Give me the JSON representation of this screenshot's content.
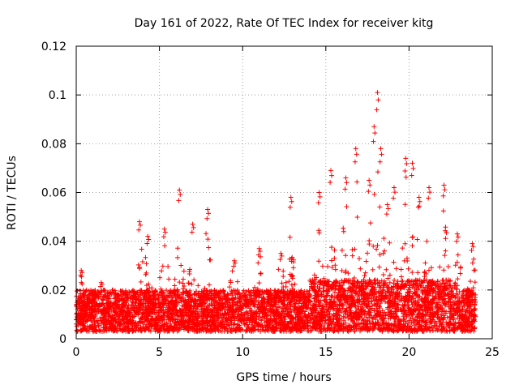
{
  "chart_data": {
    "type": "scatter",
    "title": "Day 161 of 2022, Rate Of TEC Index for receiver kitg",
    "xlabel": "GPS time / hours",
    "ylabel": "ROTI / TECUs",
    "xlim": [
      0,
      25
    ],
    "ylim": [
      0,
      0.12
    ],
    "x_ticks": [
      0,
      5,
      10,
      15,
      20,
      25
    ],
    "x_tick_labels": [
      "0",
      "5",
      "10",
      "15",
      "20",
      "25"
    ],
    "y_ticks": [
      0,
      0.02,
      0.04,
      0.06,
      0.08,
      0.1,
      0.12
    ],
    "y_tick_labels": [
      "0",
      "0.02",
      "0.04",
      "0.06",
      "0.08",
      "0.1",
      "0.12"
    ],
    "grid": true,
    "marker": "+",
    "color": "#ff0000",
    "series": [
      {
        "name": "ROTI",
        "x_range_hours": [
          0,
          24
        ],
        "typical_range": [
          0.003,
          0.02
        ],
        "peaks": [
          {
            "x": 0.3,
            "y": 0.028
          },
          {
            "x": 1.5,
            "y": 0.023
          },
          {
            "x": 3.8,
            "y": 0.048
          },
          {
            "x": 4.3,
            "y": 0.042
          },
          {
            "x": 5.3,
            "y": 0.045
          },
          {
            "x": 6.2,
            "y": 0.061
          },
          {
            "x": 7.0,
            "y": 0.047
          },
          {
            "x": 7.9,
            "y": 0.053
          },
          {
            "x": 9.5,
            "y": 0.032
          },
          {
            "x": 11.0,
            "y": 0.037
          },
          {
            "x": 12.3,
            "y": 0.035
          },
          {
            "x": 12.9,
            "y": 0.058
          },
          {
            "x": 14.6,
            "y": 0.06
          },
          {
            "x": 15.3,
            "y": 0.069
          },
          {
            "x": 16.2,
            "y": 0.066
          },
          {
            "x": 16.8,
            "y": 0.078
          },
          {
            "x": 17.6,
            "y": 0.065
          },
          {
            "x": 17.9,
            "y": 0.087
          },
          {
            "x": 18.1,
            "y": 0.101
          },
          {
            "x": 18.3,
            "y": 0.078
          },
          {
            "x": 18.7,
            "y": 0.055
          },
          {
            "x": 19.1,
            "y": 0.062
          },
          {
            "x": 19.8,
            "y": 0.074
          },
          {
            "x": 20.2,
            "y": 0.072
          },
          {
            "x": 20.6,
            "y": 0.058
          },
          {
            "x": 21.2,
            "y": 0.062
          },
          {
            "x": 22.1,
            "y": 0.063
          },
          {
            "x": 22.9,
            "y": 0.043
          },
          {
            "x": 23.8,
            "y": 0.039
          }
        ]
      }
    ]
  }
}
